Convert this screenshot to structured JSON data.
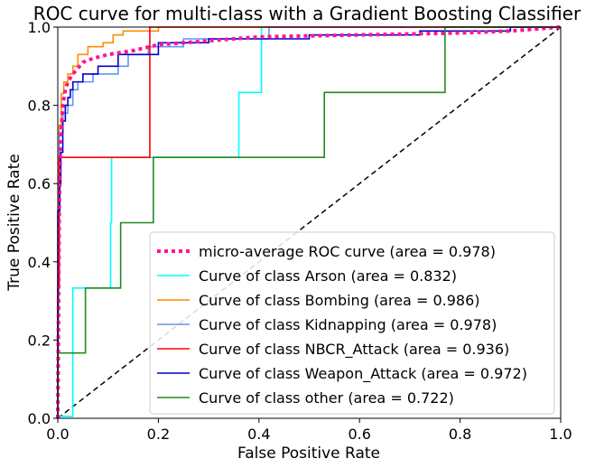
{
  "chart_data": {
    "type": "line",
    "title": "ROC curve for multi-class with a Gradient Boosting Classifier",
    "xlabel": "False Positive Rate",
    "ylabel": "True Positive Rate",
    "xlim": [
      0.0,
      1.0
    ],
    "ylim": [
      0.0,
      1.0
    ],
    "xticks": [
      "0.0",
      "0.2",
      "0.4",
      "0.6",
      "0.8",
      "1.0"
    ],
    "yticks": [
      "0.0",
      "0.2",
      "0.4",
      "0.6",
      "0.8",
      "1.0"
    ],
    "grid": false,
    "legend_position": "lower right",
    "reference_line": {
      "style": "dashed",
      "color": "#000000",
      "x": [
        0,
        1
      ],
      "y": [
        0,
        1
      ]
    },
    "series": [
      {
        "name": "micro-average ROC curve (area = 0.978)",
        "color": "#ff1493",
        "style": "dotted",
        "x": [
          0,
          0.003,
          0.006,
          0.01,
          0.015,
          0.02,
          0.03,
          0.04,
          0.05,
          0.07,
          0.1,
          0.15,
          0.2,
          0.3,
          0.4,
          0.6,
          0.8,
          0.9,
          1.0
        ],
        "y": [
          0,
          0.55,
          0.72,
          0.8,
          0.84,
          0.86,
          0.88,
          0.895,
          0.91,
          0.92,
          0.93,
          0.94,
          0.955,
          0.965,
          0.975,
          0.98,
          0.985,
          0.99,
          1.0
        ]
      },
      {
        "name": "Curve of class Arson (area = 0.832)",
        "color": "#00ffff",
        "style": "solid",
        "x": [
          0,
          0,
          0.03,
          0.03,
          0.105,
          0.105,
          0.107,
          0.107,
          0.36,
          0.36,
          0.405,
          0.405,
          1.0
        ],
        "y": [
          0,
          0.005,
          0.005,
          0.333,
          0.333,
          0.5,
          0.5,
          0.667,
          0.667,
          0.833,
          0.833,
          1.0,
          1.0
        ]
      },
      {
        "name": "Curve of class Bombing (area = 0.986)",
        "color": "#ff8c00",
        "style": "solid",
        "x": [
          0,
          0.003,
          0.003,
          0.007,
          0.007,
          0.012,
          0.012,
          0.02,
          0.02,
          0.03,
          0.03,
          0.04,
          0.04,
          0.06,
          0.06,
          0.09,
          0.09,
          0.11,
          0.11,
          0.13,
          0.13,
          0.2,
          0.2,
          1.0
        ],
        "y": [
          0,
          0.5,
          0.75,
          0.75,
          0.83,
          0.83,
          0.86,
          0.86,
          0.88,
          0.88,
          0.9,
          0.9,
          0.93,
          0.93,
          0.95,
          0.95,
          0.96,
          0.96,
          0.98,
          0.98,
          0.99,
          0.99,
          1.0,
          1.0
        ]
      },
      {
        "name": "Curve of class Kidnapping (area = 0.978)",
        "color": "#6495ed",
        "style": "solid",
        "x": [
          0,
          0.003,
          0.003,
          0.01,
          0.01,
          0.02,
          0.02,
          0.03,
          0.03,
          0.04,
          0.04,
          0.07,
          0.07,
          0.12,
          0.12,
          0.14,
          0.14,
          0.18,
          0.18,
          0.25,
          0.25,
          0.42,
          0.42,
          1.0
        ],
        "y": [
          0,
          0.62,
          0.73,
          0.73,
          0.78,
          0.78,
          0.8,
          0.8,
          0.84,
          0.84,
          0.86,
          0.86,
          0.88,
          0.88,
          0.9,
          0.9,
          0.93,
          0.93,
          0.95,
          0.95,
          0.97,
          0.97,
          1.0,
          1.0
        ]
      },
      {
        "name": "Curve of class NBCR_Attack (area = 0.936)",
        "color": "#ff0000",
        "style": "solid",
        "x": [
          0,
          0,
          0.003,
          0.003,
          0.183,
          0.183,
          1.0
        ],
        "y": [
          0,
          0.333,
          0.333,
          0.667,
          0.667,
          1.0,
          1.0
        ]
      },
      {
        "name": "Curve of class Weapon_Attack (area = 0.972)",
        "color": "#0000cd",
        "style": "solid",
        "x": [
          0,
          0,
          0.004,
          0.004,
          0.006,
          0.006,
          0.01,
          0.01,
          0.015,
          0.015,
          0.02,
          0.02,
          0.025,
          0.025,
          0.03,
          0.03,
          0.05,
          0.05,
          0.08,
          0.08,
          0.12,
          0.12,
          0.2,
          0.2,
          0.3,
          0.3,
          0.5,
          0.5,
          0.72,
          0.72,
          0.9,
          0.9,
          1.0
        ],
        "y": [
          0,
          0.53,
          0.53,
          0.6,
          0.6,
          0.68,
          0.68,
          0.76,
          0.76,
          0.8,
          0.8,
          0.82,
          0.82,
          0.84,
          0.84,
          0.86,
          0.86,
          0.88,
          0.88,
          0.9,
          0.9,
          0.93,
          0.93,
          0.96,
          0.96,
          0.97,
          0.97,
          0.98,
          0.98,
          0.99,
          0.99,
          1.0,
          1.0
        ]
      },
      {
        "name": "Curve of class other (area = 0.722)",
        "color": "#228b22",
        "style": "solid",
        "x": [
          0,
          0,
          0.055,
          0.055,
          0.125,
          0.125,
          0.19,
          0.19,
          0.53,
          0.53,
          0.77,
          0.77,
          1.0
        ],
        "y": [
          0,
          0.167,
          0.167,
          0.333,
          0.333,
          0.5,
          0.5,
          0.667,
          0.667,
          0.833,
          0.833,
          1.0,
          1.0
        ]
      }
    ]
  }
}
